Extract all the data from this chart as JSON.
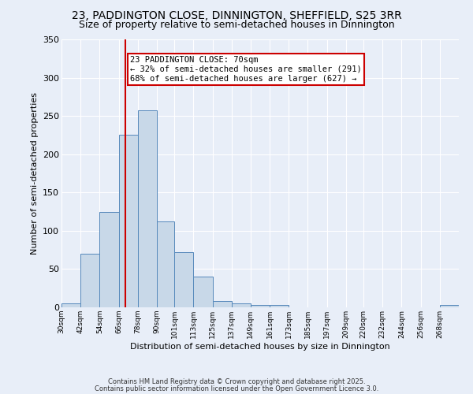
{
  "title1": "23, PADDINGTON CLOSE, DINNINGTON, SHEFFIELD, S25 3RR",
  "title2": "Size of property relative to semi-detached houses in Dinnington",
  "xlabel": "Distribution of semi-detached houses by size in Dinnington",
  "ylabel": "Number of semi-detached properties",
  "bin_edges": [
    30,
    42,
    54,
    66,
    78,
    90,
    101,
    113,
    125,
    137,
    149,
    161,
    173,
    185,
    197,
    209,
    220,
    232,
    244,
    256,
    268
  ],
  "counts": [
    5,
    70,
    125,
    225,
    257,
    112,
    72,
    40,
    8,
    5,
    3,
    3,
    0,
    0,
    0,
    0,
    0,
    0,
    0,
    0,
    3
  ],
  "property_size": 70,
  "bar_color": "#c8d8e8",
  "bar_edge_color": "#5588bb",
  "vline_color": "#cc0000",
  "annotation_text": "23 PADDINGTON CLOSE: 70sqm\n← 32% of semi-detached houses are smaller (291)\n68% of semi-detached houses are larger (627) →",
  "annotation_box_color": "#ffffff",
  "annotation_box_edge": "#cc0000",
  "footer1": "Contains HM Land Registry data © Crown copyright and database right 2025.",
  "footer2": "Contains public sector information licensed under the Open Government Licence 3.0.",
  "ylim": [
    0,
    350
  ],
  "background_color": "#e8eef8",
  "grid_color": "#ffffff",
  "title_fontsize": 10,
  "subtitle_fontsize": 9
}
